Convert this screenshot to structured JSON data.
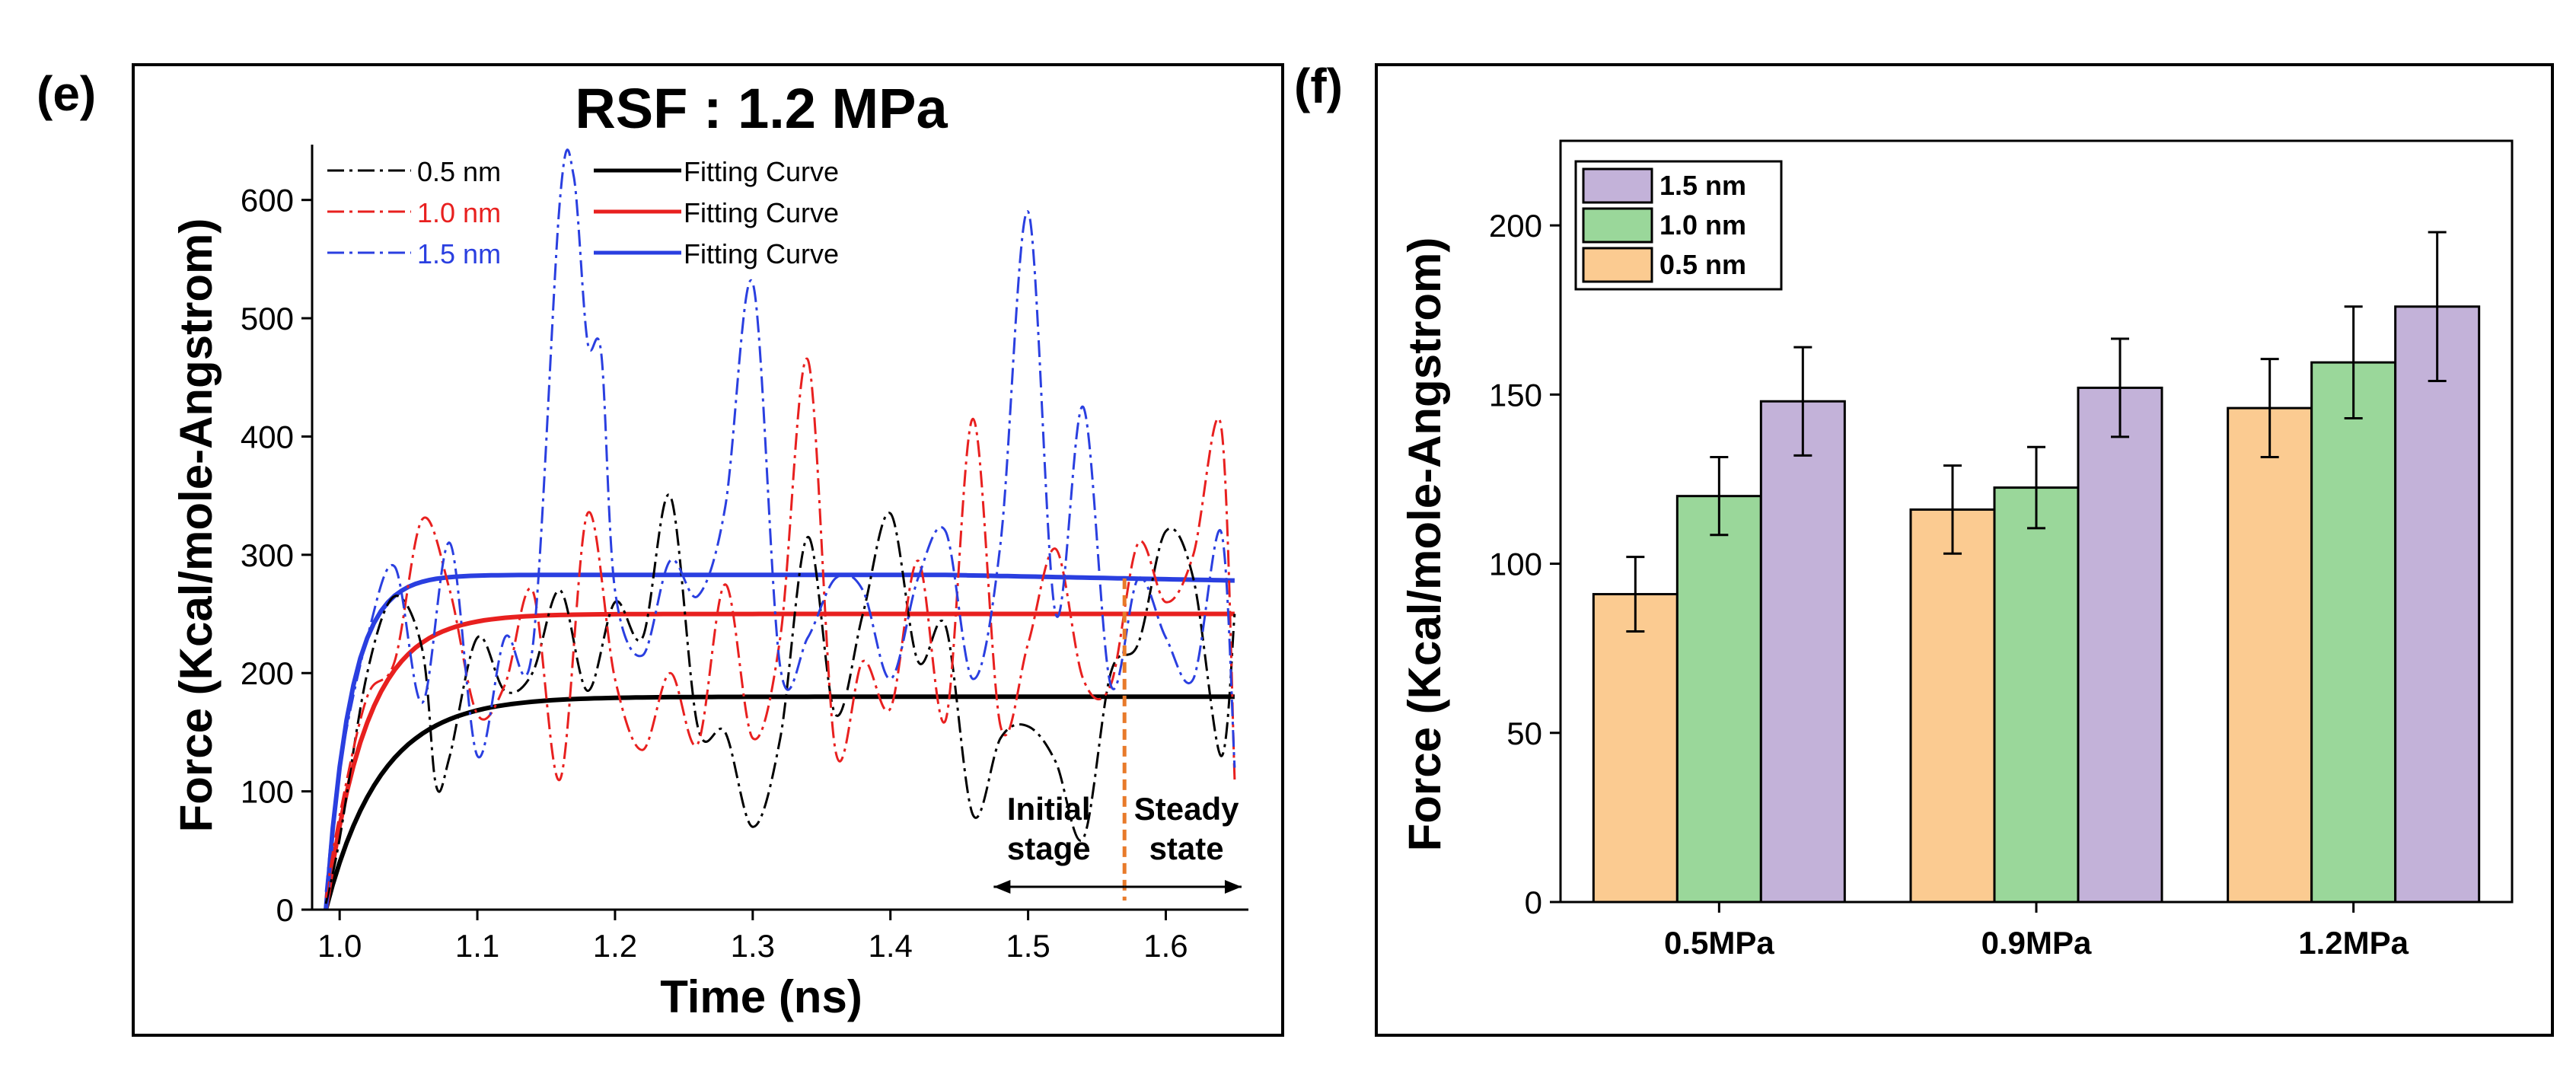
{
  "panels": {
    "left_label": "(e)",
    "right_label": "(f)"
  },
  "colors": {
    "black": "#000000",
    "red": "#e8201f",
    "blue": "#2a3fe0",
    "orange_dashed": "#e87a2a",
    "bar_orange": "#fbcb91",
    "bar_green": "#9ad79a",
    "bar_purple": "#c3b2d9"
  },
  "chart_data": [
    {
      "id": "e",
      "type": "line",
      "title": "RSF : 1.2 MPa",
      "xlabel": "Time (ns)",
      "ylabel": "Force (Kcal/mole-Angstrom)",
      "xlim": [
        0.98,
        1.66
      ],
      "ylim": [
        0,
        650
      ],
      "xticks": [
        "1.0",
        "1.1",
        "1.2",
        "1.3",
        "1.4",
        "1.5",
        "1.6"
      ],
      "xtick_values": [
        1.0,
        1.1,
        1.2,
        1.3,
        1.4,
        1.5,
        1.6
      ],
      "yticks": [
        "0",
        "100",
        "200",
        "300",
        "400",
        "500",
        "600"
      ],
      "ytick_values": [
        0,
        100,
        200,
        300,
        400,
        500,
        600
      ],
      "legend": {
        "placement": "top-left",
        "raw_labels": [
          "0.5 nm",
          "1.0 nm",
          "1.5 nm"
        ],
        "fit_labels": [
          "Fitting Curve",
          "Fitting Curve",
          "Fitting Curve"
        ]
      },
      "raw_series": [
        {
          "name": "0.5 nm",
          "color": "#000000",
          "x": [
            0.99,
            1.0,
            1.02,
            1.04,
            1.06,
            1.07,
            1.08,
            1.1,
            1.12,
            1.14,
            1.16,
            1.18,
            1.2,
            1.22,
            1.24,
            1.26,
            1.28,
            1.3,
            1.32,
            1.34,
            1.36,
            1.38,
            1.4,
            1.42,
            1.44,
            1.46,
            1.48,
            1.5,
            1.52,
            1.54,
            1.56,
            1.58,
            1.6,
            1.62,
            1.64,
            1.65
          ],
          "y": [
            5,
            60,
            200,
            265,
            220,
            105,
            130,
            230,
            185,
            200,
            270,
            185,
            260,
            230,
            350,
            155,
            150,
            70,
            145,
            315,
            165,
            250,
            335,
            210,
            240,
            80,
            145,
            155,
            125,
            60,
            200,
            225,
            320,
            280,
            130,
            250
          ]
        },
        {
          "name": "1.0 nm",
          "color": "#e8201f",
          "x": [
            0.99,
            1.0,
            1.02,
            1.04,
            1.06,
            1.08,
            1.1,
            1.12,
            1.14,
            1.16,
            1.18,
            1.2,
            1.22,
            1.24,
            1.26,
            1.28,
            1.3,
            1.32,
            1.34,
            1.36,
            1.38,
            1.4,
            1.42,
            1.44,
            1.46,
            1.48,
            1.5,
            1.52,
            1.54,
            1.56,
            1.58,
            1.6,
            1.62,
            1.64,
            1.65
          ],
          "y": [
            10,
            80,
            180,
            210,
            330,
            270,
            165,
            190,
            270,
            110,
            335,
            195,
            135,
            200,
            140,
            275,
            145,
            230,
            465,
            135,
            210,
            170,
            295,
            160,
            415,
            155,
            225,
            305,
            195,
            190,
            310,
            260,
            300,
            410,
            110
          ]
        },
        {
          "name": "1.5 nm",
          "color": "#2a3fe0",
          "x": [
            0.99,
            1.0,
            1.02,
            1.04,
            1.06,
            1.08,
            1.1,
            1.12,
            1.14,
            1.16,
            1.17,
            1.18,
            1.19,
            1.2,
            1.22,
            1.24,
            1.26,
            1.28,
            1.3,
            1.32,
            1.34,
            1.36,
            1.38,
            1.4,
            1.42,
            1.44,
            1.46,
            1.48,
            1.5,
            1.52,
            1.54,
            1.56,
            1.58,
            1.6,
            1.62,
            1.64,
            1.65
          ],
          "y": [
            15,
            120,
            230,
            290,
            175,
            310,
            130,
            230,
            220,
            600,
            620,
            480,
            470,
            270,
            215,
            295,
            265,
            340,
            530,
            205,
            230,
            280,
            270,
            195,
            280,
            320,
            195,
            310,
            590,
            250,
            425,
            190,
            280,
            230,
            195,
            320,
            120
          ]
        }
      ],
      "fit_series": [
        {
          "name": "Fitting Curve",
          "color": "#000000",
          "model": "exponential_rise",
          "x0": 0.99,
          "plateau": 180,
          "tau": 0.04,
          "drift": 0
        },
        {
          "name": "Fitting Curve",
          "color": "#e8201f",
          "model": "exponential_rise",
          "x0": 0.99,
          "plateau": 250,
          "tau": 0.03,
          "drift": 0
        },
        {
          "name": "Fitting Curve",
          "color": "#2a3fe0",
          "model": "exponential_rise",
          "x0": 0.99,
          "plateau": 283,
          "tau": 0.018,
          "drift": -0.08
        }
      ],
      "marker_line_x": 1.57,
      "annotations": {
        "initial": [
          "Initial",
          "stage"
        ],
        "steady": [
          "Steady",
          "state"
        ]
      }
    },
    {
      "id": "f",
      "type": "bar",
      "xlabel": "",
      "ylabel": "Force (Kcal/mole-Angstrom)",
      "ylim": [
        0,
        225
      ],
      "yticks": [
        "0",
        "50",
        "100",
        "150",
        "200"
      ],
      "ytick_values": [
        0,
        50,
        100,
        150,
        200
      ],
      "categories": [
        "0.5MPa",
        "0.9MPa",
        "1.2MPa"
      ],
      "legend": {
        "placement": "top-left",
        "order": [
          "1.5 nm",
          "1.0 nm",
          "0.5 nm"
        ]
      },
      "series": [
        {
          "name": "0.5 nm",
          "color": "#fbcb91",
          "values": [
            91,
            116,
            146
          ],
          "errors": [
            11,
            13,
            14.5
          ]
        },
        {
          "name": "1.0 nm",
          "color": "#9ad79a",
          "values": [
            120,
            122.5,
            159.5
          ],
          "errors": [
            11.5,
            12,
            16.5
          ]
        },
        {
          "name": "1.5 nm",
          "color": "#c3b2d9",
          "values": [
            148,
            152,
            176
          ],
          "errors": [
            16,
            14.5,
            22
          ]
        }
      ]
    }
  ]
}
